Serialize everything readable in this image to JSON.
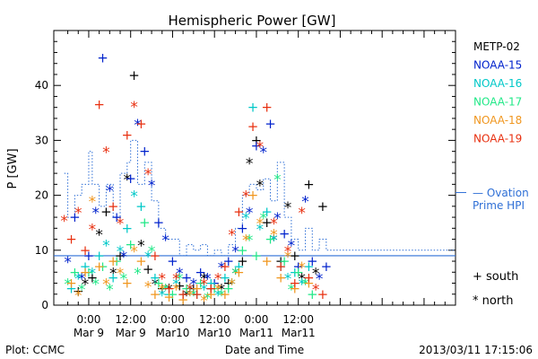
{
  "chart_data": {
    "type": "scatter",
    "title": "Hemispheric Power [GW]",
    "xlabel": "Date and Time",
    "ylabel": "P [GW]",
    "xlim_hours": [
      -10,
      105
    ],
    "ylim": [
      0,
      50
    ],
    "yticks": [
      0,
      10,
      20,
      30,
      40
    ],
    "xticks": [
      {
        "hours": 0,
        "time": "0:00",
        "date": "Mar 9"
      },
      {
        "hours": 12,
        "time": "12:00",
        "date": "Mar 9"
      },
      {
        "hours": 24,
        "time": "0:00",
        "date": "Mar10"
      },
      {
        "hours": 36,
        "time": "12:00",
        "date": "Mar10"
      },
      {
        "hours": 48,
        "time": "0:00",
        "date": "Mar11"
      },
      {
        "hours": 60,
        "time": "12:00",
        "date": "Mar11"
      }
    ],
    "grid": false,
    "legend_position": "right",
    "series": [
      {
        "name": "METP-02",
        "color": "#000000",
        "points": [
          [
            -3,
            2.5
          ],
          [
            -1,
            4
          ],
          [
            1,
            5
          ],
          [
            3,
            13
          ],
          [
            5,
            17
          ],
          [
            7,
            6
          ],
          [
            9,
            9
          ],
          [
            11,
            23
          ],
          [
            13,
            41.8
          ],
          [
            15,
            11
          ],
          [
            17,
            6.5
          ],
          [
            19,
            4
          ],
          [
            21,
            3
          ],
          [
            23,
            3
          ],
          [
            26,
            3.5
          ],
          [
            28,
            2
          ],
          [
            30,
            3
          ],
          [
            33,
            5
          ],
          [
            35,
            3
          ],
          [
            38,
            3
          ],
          [
            40,
            4
          ],
          [
            42,
            6
          ],
          [
            44,
            8
          ],
          [
            46,
            26
          ],
          [
            48,
            30
          ],
          [
            49,
            22
          ],
          [
            51,
            15
          ],
          [
            53,
            12
          ],
          [
            55,
            8
          ],
          [
            57,
            18
          ],
          [
            59,
            9
          ],
          [
            61,
            5
          ],
          [
            63,
            22
          ],
          [
            65,
            6
          ],
          [
            67,
            18
          ]
        ]
      },
      {
        "name": "NOAA-15",
        "color": "#0022cc",
        "points": [
          [
            -6,
            8
          ],
          [
            -4,
            16
          ],
          [
            -2,
            5
          ],
          [
            0,
            9
          ],
          [
            2,
            17
          ],
          [
            4,
            45
          ],
          [
            6,
            21
          ],
          [
            8,
            16
          ],
          [
            10,
            9
          ],
          [
            12,
            23
          ],
          [
            14,
            33
          ],
          [
            16,
            28
          ],
          [
            18,
            22
          ],
          [
            20,
            15
          ],
          [
            22,
            12
          ],
          [
            24,
            8
          ],
          [
            26,
            6
          ],
          [
            28,
            5
          ],
          [
            30,
            4
          ],
          [
            32,
            6
          ],
          [
            34,
            5
          ],
          [
            36,
            4
          ],
          [
            38,
            7
          ],
          [
            40,
            8
          ],
          [
            42,
            10
          ],
          [
            44,
            14
          ],
          [
            46,
            17
          ],
          [
            48,
            29
          ],
          [
            50,
            28
          ],
          [
            52,
            33
          ],
          [
            54,
            16
          ],
          [
            56,
            13
          ],
          [
            58,
            11
          ],
          [
            60,
            7
          ],
          [
            62,
            19
          ],
          [
            64,
            8
          ],
          [
            66,
            5
          ],
          [
            68,
            7
          ]
        ]
      },
      {
        "name": "NOAA-16",
        "color": "#00c8c8",
        "points": [
          [
            -5,
            3
          ],
          [
            -3,
            5
          ],
          [
            -1,
            7
          ],
          [
            1,
            6
          ],
          [
            3,
            9
          ],
          [
            5,
            11
          ],
          [
            7,
            5
          ],
          [
            9,
            10
          ],
          [
            11,
            14
          ],
          [
            13,
            20
          ],
          [
            15,
            18
          ],
          [
            17,
            9
          ],
          [
            19,
            5
          ],
          [
            21,
            2
          ],
          [
            23,
            2
          ],
          [
            25,
            4
          ],
          [
            27,
            2
          ],
          [
            29,
            3
          ],
          [
            31,
            2
          ],
          [
            33,
            3
          ],
          [
            35,
            4
          ],
          [
            37,
            2
          ],
          [
            39,
            5
          ],
          [
            41,
            4
          ],
          [
            43,
            7
          ],
          [
            45,
            16
          ],
          [
            47,
            36
          ],
          [
            49,
            14
          ],
          [
            51,
            17
          ],
          [
            53,
            12
          ],
          [
            55,
            7
          ],
          [
            57,
            5
          ],
          [
            59,
            6
          ],
          [
            61,
            4
          ],
          [
            63,
            7
          ]
        ]
      },
      {
        "name": "NOAA-17",
        "color": "#22e888",
        "points": [
          [
            -6,
            4
          ],
          [
            -4,
            6
          ],
          [
            -2,
            3
          ],
          [
            0,
            6
          ],
          [
            2,
            4
          ],
          [
            4,
            7
          ],
          [
            6,
            3
          ],
          [
            8,
            8
          ],
          [
            10,
            5
          ],
          [
            12,
            11
          ],
          [
            14,
            6
          ],
          [
            16,
            15
          ],
          [
            18,
            10
          ],
          [
            20,
            4
          ],
          [
            22,
            3
          ],
          [
            24,
            2
          ],
          [
            26,
            5
          ],
          [
            28,
            3
          ],
          [
            30,
            2
          ],
          [
            32,
            4
          ],
          [
            34,
            1.5
          ],
          [
            36,
            3
          ],
          [
            38,
            2
          ],
          [
            40,
            3
          ],
          [
            42,
            6
          ],
          [
            44,
            10
          ],
          [
            46,
            12
          ],
          [
            48,
            9
          ],
          [
            50,
            16
          ],
          [
            52,
            12
          ],
          [
            54,
            23
          ],
          [
            56,
            8
          ],
          [
            58,
            3
          ],
          [
            60,
            6
          ],
          [
            62,
            4
          ],
          [
            64,
            2
          ]
        ]
      },
      {
        "name": "NOAA-18",
        "color": "#f0961e",
        "points": [
          [
            -5,
            4
          ],
          [
            -3,
            2
          ],
          [
            -1,
            6
          ],
          [
            1,
            19
          ],
          [
            3,
            7
          ],
          [
            5,
            4
          ],
          [
            7,
            8
          ],
          [
            9,
            6
          ],
          [
            11,
            4
          ],
          [
            13,
            10
          ],
          [
            15,
            8
          ],
          [
            17,
            3.5
          ],
          [
            19,
            2
          ],
          [
            21,
            3
          ],
          [
            23,
            1.5
          ],
          [
            25,
            3
          ],
          [
            27,
            1
          ],
          [
            29,
            2
          ],
          [
            31,
            3
          ],
          [
            33,
            1
          ],
          [
            35,
            2
          ],
          [
            37,
            3
          ],
          [
            39,
            2
          ],
          [
            41,
            4
          ],
          [
            43,
            6
          ],
          [
            45,
            12
          ],
          [
            47,
            20
          ],
          [
            49,
            15
          ],
          [
            51,
            8
          ],
          [
            53,
            13
          ],
          [
            55,
            5
          ],
          [
            57,
            9
          ],
          [
            59,
            3
          ],
          [
            61,
            7
          ],
          [
            63,
            4
          ]
        ]
      },
      {
        "name": "NOAA-19",
        "color": "#e83010",
        "points": [
          [
            -7,
            15.5
          ],
          [
            -5,
            12
          ],
          [
            -3,
            17
          ],
          [
            -1,
            10
          ],
          [
            1,
            14
          ],
          [
            3,
            36.5
          ],
          [
            5,
            28
          ],
          [
            7,
            18
          ],
          [
            9,
            15
          ],
          [
            11,
            31
          ],
          [
            13,
            36.3
          ],
          [
            15,
            33
          ],
          [
            17,
            24
          ],
          [
            19,
            9
          ],
          [
            21,
            5
          ],
          [
            23,
            3
          ],
          [
            25,
            5
          ],
          [
            27,
            2
          ],
          [
            29,
            3
          ],
          [
            31,
            2
          ],
          [
            33,
            4
          ],
          [
            35,
            3
          ],
          [
            37,
            5
          ],
          [
            39,
            7
          ],
          [
            41,
            13
          ],
          [
            43,
            17
          ],
          [
            45,
            20
          ],
          [
            47,
            32.5
          ],
          [
            49,
            29
          ],
          [
            51,
            36
          ],
          [
            53,
            15
          ],
          [
            55,
            7
          ],
          [
            57,
            10
          ],
          [
            59,
            4
          ],
          [
            61,
            17
          ],
          [
            63,
            5
          ],
          [
            65,
            3
          ],
          [
            67,
            2
          ]
        ]
      }
    ],
    "ovation": {
      "name": "Ovation Prime HPI",
      "color": "#2e6fd6",
      "steps": [
        [
          -7,
          24
        ],
        [
          -6,
          16
        ],
        [
          -4,
          20
        ],
        [
          -2,
          22
        ],
        [
          0,
          28
        ],
        [
          1,
          22
        ],
        [
          3,
          18
        ],
        [
          5,
          22
        ],
        [
          7,
          16
        ],
        [
          9,
          24
        ],
        [
          11,
          26
        ],
        [
          12,
          30
        ],
        [
          14,
          22
        ],
        [
          16,
          26
        ],
        [
          18,
          19
        ],
        [
          20,
          14
        ],
        [
          22,
          12
        ],
        [
          24,
          12
        ],
        [
          26,
          9
        ],
        [
          28,
          11
        ],
        [
          30,
          10
        ],
        [
          32,
          11
        ],
        [
          34,
          9
        ],
        [
          36,
          10
        ],
        [
          38,
          9
        ],
        [
          40,
          11
        ],
        [
          42,
          14
        ],
        [
          44,
          20
        ],
        [
          46,
          22
        ],
        [
          48,
          21
        ],
        [
          50,
          23
        ],
        [
          52,
          19
        ],
        [
          54,
          26
        ],
        [
          56,
          16
        ],
        [
          58,
          12
        ],
        [
          60,
          10
        ],
        [
          62,
          14
        ],
        [
          64,
          10
        ],
        [
          66,
          12
        ],
        [
          68,
          10
        ]
      ]
    },
    "marker_key": [
      {
        "symbol": "+",
        "label": "south"
      },
      {
        "symbol": "*",
        "label": "north"
      }
    ]
  },
  "footer": {
    "left": "Plot: CCMC",
    "right": "2013/03/11 17:15:06"
  }
}
